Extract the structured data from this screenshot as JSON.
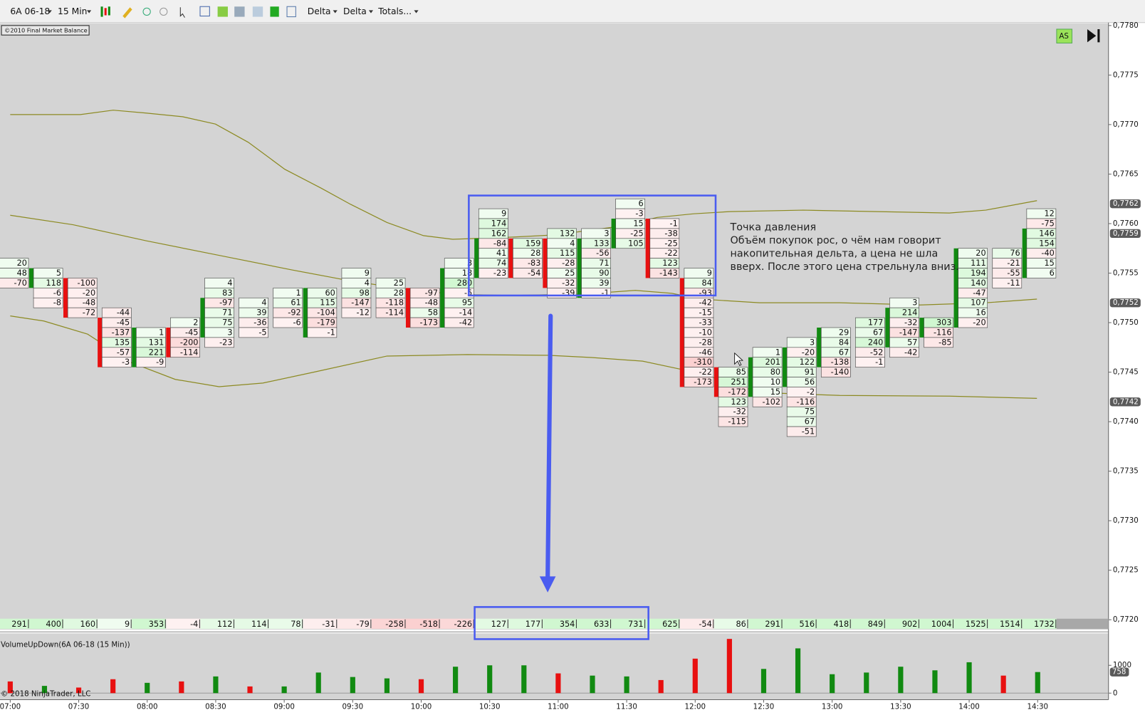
{
  "toolbar": {
    "instrument": "6A 06-18",
    "period": "15 Min",
    "menus": [
      "Delta",
      "Delta",
      "Totals..."
    ]
  },
  "watermark": "©2010 Final Market Balance",
  "badge": "AS",
  "annotation": {
    "title": "Точка давления",
    "lines": [
      "Объём покупок рос, о чём нам говорит",
      "накопительная дельта, а цена не шла",
      "вверх. После этого цена стрельнула вниз."
    ]
  },
  "chart_data": {
    "type": "footprint",
    "xticks": [
      "07:00",
      "07:30",
      "08:00",
      "08:30",
      "09:00",
      "09:30",
      "10:00",
      "10:30",
      "11:00",
      "11:30",
      "12:00",
      "12:30",
      "13:00",
      "13:30",
      "14:00",
      "14:30"
    ],
    "ylim": [
      0.7719,
      0.778
    ],
    "yticks": [
      {
        "value": 0.778,
        "label": "0,7780"
      },
      {
        "value": 0.7775,
        "label": "0,7775"
      },
      {
        "value": 0.777,
        "label": "0,7770"
      },
      {
        "value": 0.7765,
        "label": "0,7765"
      },
      {
        "value": 0.776,
        "label": "0,7760"
      },
      {
        "value": 0.7755,
        "label": "0,7755"
      },
      {
        "value": 0.775,
        "label": "0,7750"
      },
      {
        "value": 0.7745,
        "label": "0,7745"
      },
      {
        "value": 0.774,
        "label": "0,7740"
      },
      {
        "value": 0.7735,
        "label": "0,7735"
      },
      {
        "value": 0.773,
        "label": "0,7730"
      },
      {
        "value": 0.7725,
        "label": "0,7725"
      },
      {
        "value": 0.772,
        "label": "0,7720"
      }
    ],
    "price_markers": [
      {
        "value": 0.7762,
        "label": "0,7762"
      },
      {
        "value": 0.7759,
        "label": "0,7759"
      },
      {
        "value": 0.7752,
        "label": "0,7752"
      },
      {
        "value": 0.7742,
        "label": "0,7742"
      }
    ],
    "up_color": "#118a11",
    "down_color": "#e81010",
    "bars": [
      {
        "top": 0.7756,
        "values": [
          20,
          48,
          -70
        ]
      },
      {
        "top": 0.7755,
        "values": [
          5,
          118,
          -6,
          -8
        ],
        "body": [
          0.7755,
          0.7754
        ],
        "body_color": "#118a11"
      },
      {
        "top": 0.7754,
        "values": [
          -100,
          -20,
          -48,
          -72
        ],
        "body": [
          0.7754,
          0.7751
        ],
        "body_color": "#e81010"
      },
      {
        "top": 0.7751,
        "values": [
          -44,
          -45,
          -137,
          135,
          -57,
          -3
        ],
        "body": [
          0.775,
          0.7746
        ],
        "body_color": "#e81010"
      },
      {
        "top": 0.7749,
        "values": [
          1,
          131,
          221,
          -9
        ],
        "body": [
          0.7749,
          0.7746
        ],
        "body_color": "#118a11"
      },
      {
        "top": 0.775,
        "values": [
          2,
          -45,
          -200,
          -114
        ],
        "body": [
          0.7749,
          0.7747
        ],
        "body_color": "#e81010"
      },
      {
        "top": 0.7754,
        "values": [
          4,
          83,
          -97,
          71,
          75,
          3,
          -23
        ],
        "body": [
          0.7752,
          0.7749
        ],
        "body_color": "#118a11"
      },
      {
        "top": 0.7752,
        "values": [
          4,
          39,
          -36,
          -5
        ]
      },
      {
        "top": 0.7753,
        "values": [
          1,
          61,
          -92,
          -6
        ]
      },
      {
        "top": 0.7753,
        "values": [
          60,
          115,
          -104,
          -179,
          -1
        ],
        "body": [
          0.7753,
          0.7749
        ],
        "body_color": "#118a11"
      },
      {
        "top": 0.7755,
        "values": [
          9,
          4,
          98,
          -147,
          -12
        ]
      },
      {
        "top": 0.7754,
        "values": [
          25,
          28,
          -118,
          -114
        ]
      },
      {
        "top": 0.7753,
        "values": [
          -97,
          -48,
          58,
          -173
        ],
        "body": [
          0.7753,
          0.775
        ],
        "body_color": "#e81010"
      },
      {
        "top": 0.7756,
        "values": [
          3,
          18,
          280,
          -5,
          95,
          -14,
          -42
        ],
        "body": [
          0.7755,
          0.775
        ],
        "body_color": "#118a11"
      },
      {
        "top": 0.7761,
        "values": [
          9,
          174,
          162,
          -84,
          41,
          74,
          -23
        ],
        "body": [
          0.7758,
          0.7755
        ],
        "body_color": "#118a11"
      },
      {
        "top": 0.7758,
        "values": [
          159,
          28,
          -83,
          -54
        ],
        "body": [
          0.7758,
          0.7755
        ],
        "body_color": "#e81010"
      },
      {
        "top": 0.7759,
        "values": [
          132,
          4,
          115,
          -28,
          25,
          -32,
          -39
        ],
        "body": [
          0.7758,
          0.7754
        ],
        "body_color": "#e81010"
      },
      {
        "top": 0.7759,
        "values": [
          3,
          133,
          -56,
          71,
          90,
          39,
          -1
        ],
        "body": [
          0.7758,
          0.7753
        ],
        "body_color": "#118a11"
      },
      {
        "top": 0.7762,
        "values": [
          6,
          -3,
          15,
          -25,
          105
        ],
        "body": [
          0.776,
          0.7758
        ],
        "body_color": "#118a11"
      },
      {
        "top": 0.776,
        "values": [
          -1,
          -38,
          -25,
          -22,
          123,
          -143
        ],
        "body": [
          0.776,
          0.7755
        ],
        "body_color": "#e81010"
      },
      {
        "top": 0.7755,
        "values": [
          9,
          84,
          -93,
          -42,
          -15,
          -33,
          -10,
          -28,
          -46,
          -310,
          -22,
          -173
        ],
        "body": [
          0.7754,
          0.7744
        ],
        "body_color": "#e81010"
      },
      {
        "top": 0.7745,
        "values": [
          85,
          251,
          -172,
          123,
          -32,
          -115
        ],
        "body": [
          0.7745,
          0.7743
        ],
        "body_color": "#e81010"
      },
      {
        "top": 0.7747,
        "values": [
          1,
          201,
          80,
          10,
          15,
          -102
        ],
        "body": [
          0.7746,
          0.7743
        ],
        "body_color": "#118a11"
      },
      {
        "top": 0.7748,
        "values": [
          3,
          -20,
          122,
          91,
          56,
          -2,
          -116,
          75,
          67,
          -51
        ],
        "body": [
          0.7747,
          0.7744
        ],
        "body_color": "#118a11"
      },
      {
        "top": 0.7749,
        "values": [
          29,
          84,
          67,
          -138,
          -140
        ],
        "body": [
          0.7749,
          0.7746
        ],
        "body_color": "#118a11"
      },
      {
        "top": 0.775,
        "values": [
          177,
          67,
          240,
          -52,
          -1
        ]
      },
      {
        "top": 0.7752,
        "values": [
          3,
          214,
          -32,
          -147,
          57,
          -42
        ],
        "body": [
          0.7751,
          0.7748
        ],
        "body_color": "#118a11"
      },
      {
        "top": 0.775,
        "values": [
          303,
          -116,
          -85
        ],
        "body": [
          0.775,
          0.7749
        ],
        "body_color": "#118a11"
      },
      {
        "top": 0.7757,
        "values": [
          20,
          111,
          194,
          140,
          -47,
          107,
          16,
          -20
        ],
        "body": [
          0.7757,
          0.775
        ],
        "body_color": "#118a11"
      },
      {
        "top": 0.7757,
        "values": [
          76,
          -21,
          -55,
          -11
        ]
      },
      {
        "top": 0.7761,
        "values": [
          12,
          -75,
          146,
          154,
          -40,
          15,
          6
        ],
        "body": [
          0.7759,
          0.7755
        ],
        "body_color": "#118a11"
      }
    ],
    "totals": {
      "values": [
        291,
        400,
        160,
        9,
        353,
        -4,
        112,
        114,
        78,
        -31,
        -79,
        -258,
        -518,
        -226,
        127,
        177,
        354,
        633,
        731,
        625,
        -54,
        86,
        291,
        516,
        418,
        849,
        902,
        1004,
        1525,
        1514,
        1732
      ]
    },
    "volume": {
      "title": "VolumeUpDown(6A 06-18 (15 Min))",
      "values": [
        420,
        260,
        200,
        500,
        370,
        420,
        600,
        240,
        240,
        740,
        580,
        530,
        500,
        950,
        1000,
        1000,
        710,
        630,
        600,
        470,
        1240,
        1950,
        870,
        1610,
        680,
        740,
        950,
        820,
        1110,
        630,
        758
      ],
      "colors": [
        "#e81010",
        "#118a11",
        "#e81010",
        "#e81010",
        "#118a11",
        "#e81010",
        "#118a11",
        "#e81010",
        "#118a11",
        "#118a11",
        "#118a11",
        "#118a11",
        "#e81010",
        "#118a11",
        "#118a11",
        "#118a11",
        "#e81010",
        "#118a11",
        "#118a11",
        "#e81010",
        "#e81010",
        "#e81010",
        "#118a11",
        "#118a11",
        "#118a11",
        "#118a11",
        "#118a11",
        "#118a11",
        "#118a11",
        "#e81010",
        "#118a11"
      ],
      "ylim": [
        0,
        2100
      ],
      "yticks": [
        0,
        1000
      ]
    },
    "copyright": "© 2018 NinjaTrader, LLC"
  }
}
